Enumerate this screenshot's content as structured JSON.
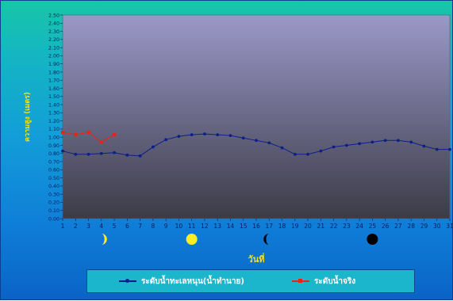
{
  "chart_data": {
    "type": "line",
    "xlabel": "วันที่",
    "ylabel": "ความสูง (เมตร)",
    "x": [
      1,
      2,
      3,
      4,
      5,
      6,
      7,
      8,
      9,
      10,
      11,
      12,
      13,
      14,
      15,
      16,
      17,
      18,
      19,
      20,
      21,
      22,
      23,
      24,
      25,
      26,
      27,
      28,
      29,
      30,
      31
    ],
    "ylim": [
      0,
      2.5
    ],
    "y_ticks": [
      "0.00",
      "0.10",
      "0.20",
      "0.30",
      "0.40",
      "0.50",
      "0.60",
      "0.70",
      "0.80",
      "0.90",
      "1.00",
      "1.10",
      "1.20",
      "1.30",
      "1.40",
      "1.50",
      "1.60",
      "1.70",
      "1.80",
      "1.90",
      "2.00",
      "2.10",
      "2.20",
      "2.30",
      "2.40",
      "2.50"
    ],
    "series": [
      {
        "name": "ระดับน้ำทะเลหนุน(น้ำทำนาย)",
        "color": "#0b1f8c",
        "marker": "circle",
        "x": [
          1,
          2,
          3,
          4,
          5,
          6,
          7,
          8,
          9,
          10,
          11,
          12,
          13,
          14,
          15,
          16,
          17,
          18,
          19,
          20,
          21,
          22,
          23,
          24,
          25,
          26,
          27,
          28,
          29,
          30,
          31
        ],
        "values": [
          0.83,
          0.79,
          0.79,
          0.8,
          0.81,
          0.78,
          0.77,
          0.88,
          0.97,
          1.01,
          1.03,
          1.04,
          1.03,
          1.02,
          0.99,
          0.96,
          0.93,
          0.87,
          0.79,
          0.79,
          0.83,
          0.88,
          0.9,
          0.92,
          0.94,
          0.96,
          0.96,
          0.94,
          0.89,
          0.85,
          0.85
        ]
      },
      {
        "name": "ระดับน้ำจริง",
        "color": "#e8231c",
        "marker": "square",
        "x": [
          1,
          2,
          3,
          4,
          5
        ],
        "values": [
          1.06,
          1.03,
          1.06,
          0.94,
          1.03
        ]
      }
    ],
    "moon_phases": [
      {
        "day": 4,
        "phase": "first-quarter"
      },
      {
        "day": 11,
        "phase": "full-moon"
      },
      {
        "day": 17,
        "phase": "last-quarter"
      },
      {
        "day": 25,
        "phase": "new-moon"
      }
    ],
    "colors": {
      "plot_top": "#9b98c8",
      "plot_bottom": "#3b3b47",
      "axis_text": "#0a1a5c",
      "ylabel_color": "#f2e21b",
      "moon_color": "#ffee22",
      "new_moon_color": "#000000"
    }
  }
}
